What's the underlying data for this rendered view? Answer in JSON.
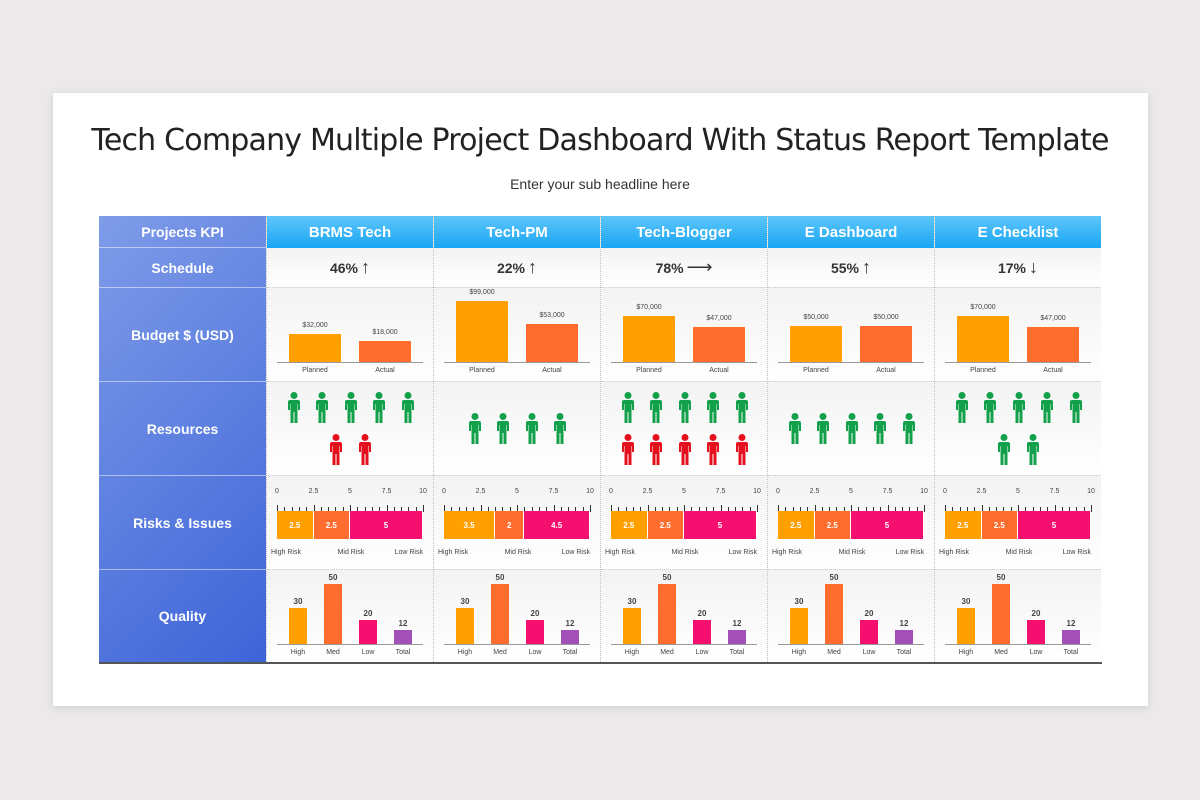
{
  "title": "Tech Company Multiple Project Dashboard With Status Report Template",
  "subtitle": "Enter your sub headline here",
  "kpi_rows": [
    "Projects KPI",
    "Schedule",
    "Budget $ (USD)",
    "Resources",
    "Risks & Issues",
    "Quality"
  ],
  "colors": {
    "planned": "#ffa000",
    "actual": "#ff6d2e",
    "green": "#12a04a",
    "red": "#e5101d",
    "high": "#ffa000",
    "mid": "#ff6d2e",
    "low": "#f50f6e",
    "total": "#a250b8",
    "header": "#19a6f3"
  },
  "budget_labels": [
    "Planned",
    "Actual"
  ],
  "risk_ticks": [
    "0",
    "2.5",
    "5",
    "7.5",
    "10"
  ],
  "risk_labels": [
    "High Risk",
    "Mid Risk",
    "Low Risk"
  ],
  "quality_labels": [
    "High",
    "Med",
    "Low",
    "Total"
  ],
  "projects": [
    {
      "name": "BRMS Tech",
      "schedule": "46%",
      "trend": "up",
      "trend_glyph": "↑",
      "budget": {
        "planned": "$32,000",
        "actual": "$18,000",
        "planned_v": 32000,
        "actual_v": 18000
      },
      "resources": {
        "green": 5,
        "red": 2,
        "second_row_color": "red"
      },
      "risks": [
        2.5,
        2.5,
        5
      ],
      "risk_text": [
        "2.5",
        "2.5",
        "5"
      ],
      "quality": [
        30,
        50,
        20,
        12
      ]
    },
    {
      "name": "Tech-PM",
      "schedule": "22%",
      "trend": "up",
      "trend_glyph": "↑",
      "budget": {
        "planned": "$99,000",
        "actual": "$53,000",
        "planned_v": 99000,
        "actual_v": 53000
      },
      "resources": {
        "green": 4,
        "red": 0
      },
      "risks": [
        3.5,
        2,
        4.5
      ],
      "risk_text": [
        "3.5",
        "2",
        "4.5"
      ],
      "quality": [
        30,
        50,
        20,
        12
      ]
    },
    {
      "name": "Tech-Blogger",
      "schedule": "78%",
      "trend": "flat",
      "trend_glyph": "⟶",
      "budget": {
        "planned": "$70,000",
        "actual": "$47,000",
        "planned_v": 70000,
        "actual_v": 47000
      },
      "resources": {
        "green": 5,
        "red": 5
      },
      "risks": [
        2.5,
        2.5,
        5
      ],
      "risk_text": [
        "2.5",
        "2.5",
        "5"
      ],
      "quality": [
        30,
        50,
        20,
        12
      ]
    },
    {
      "name": "E Dashboard",
      "schedule": "55%",
      "trend": "up",
      "trend_glyph": "↑",
      "budget": {
        "planned": "$50,000",
        "actual": "$50,000",
        "planned_v": 50000,
        "actual_v": 50000
      },
      "resources": {
        "green": 5,
        "red": 0
      },
      "risks": [
        2.5,
        2.5,
        5
      ],
      "risk_text": [
        "2.5",
        "2.5",
        "5"
      ],
      "quality": [
        30,
        50,
        20,
        12
      ]
    },
    {
      "name": "E Checklist",
      "schedule": "17%",
      "trend": "down",
      "trend_glyph": "↓",
      "budget": {
        "planned": "$70,000",
        "actual": "$47,000",
        "planned_v": 70000,
        "actual_v": 47000
      },
      "resources": {
        "green": 7,
        "red": 0
      },
      "risks": [
        2.5,
        2.5,
        5
      ],
      "risk_text": [
        "2.5",
        "2.5",
        "5"
      ],
      "quality": [
        30,
        50,
        20,
        12
      ]
    }
  ]
}
